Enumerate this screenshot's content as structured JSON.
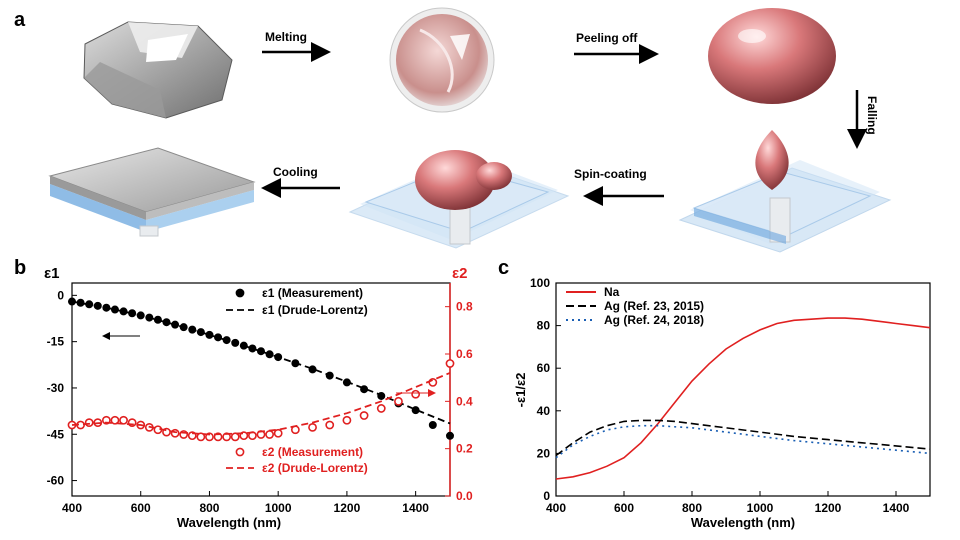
{
  "panel_a": {
    "label": "a",
    "steps": [
      "Melting",
      "Peeling off",
      "Falling",
      "Cooling",
      "Spin-coating"
    ]
  },
  "panel_b": {
    "label": "b",
    "y1_label": "ε1",
    "y2_label": "ε2",
    "xlabel": "Wavelength (nm)"
  },
  "panel_c": {
    "label": "c",
    "ylabel": "-ε1/ε2",
    "xlabel": "Wavelength (nm)"
  },
  "colors": {
    "red": "#e02020",
    "black": "#000000",
    "blue": "#1a5fb4",
    "glass": "#b9d6f0",
    "sodium": "#d9787a"
  },
  "chart_data": [
    {
      "id": "b",
      "type": "scatter",
      "xlabel": "Wavelength (nm)",
      "xlim": [
        400,
        1500
      ],
      "xticks": [
        400,
        600,
        800,
        1000,
        1200,
        1400
      ],
      "y1label": "ε1",
      "y1lim": [
        -65,
        4
      ],
      "y1ticks": [
        0,
        -15,
        -30,
        -45,
        -60
      ],
      "y2label": "ε2",
      "y2lim": [
        0,
        0.9
      ],
      "y2ticks": [
        "0.0",
        "0.2",
        "0.4",
        "0.6",
        "0.8"
      ],
      "series": [
        {
          "name": "ε1 (Measurement)",
          "axis": "left",
          "style": "dots",
          "color": "#000000",
          "x": [
            400,
            425,
            450,
            475,
            500,
            525,
            550,
            575,
            600,
            625,
            650,
            675,
            700,
            725,
            750,
            775,
            800,
            825,
            850,
            875,
            900,
            925,
            950,
            975,
            1000,
            1050,
            1100,
            1150,
            1200,
            1250,
            1300,
            1350,
            1400,
            1450,
            1500
          ],
          "y": [
            -2.0,
            -2.4,
            -2.9,
            -3.4,
            -4.0,
            -4.6,
            -5.2,
            -5.8,
            -6.5,
            -7.2,
            -7.9,
            -8.7,
            -9.5,
            -10.3,
            -11.1,
            -11.9,
            -12.8,
            -13.6,
            -14.5,
            -15.4,
            -16.3,
            -17.2,
            -18.1,
            -19.1,
            -20.0,
            -22.0,
            -24.0,
            -26.0,
            -28.2,
            -30.4,
            -32.6,
            -35.0,
            -37.2,
            -42.0,
            -45.5
          ]
        },
        {
          "name": "ε1 (Drude-Lorentz)",
          "axis": "left",
          "style": "dash",
          "color": "#000000",
          "x": [
            400,
            500,
            600,
            700,
            800,
            900,
            1000,
            1100,
            1200,
            1300,
            1400,
            1500
          ],
          "y": [
            -2.0,
            -4.0,
            -6.5,
            -9.5,
            -12.8,
            -16.3,
            -20.0,
            -23.8,
            -28.0,
            -32.3,
            -37.0,
            -41.5
          ]
        },
        {
          "name": "ε2 (Measurement)",
          "axis": "right",
          "style": "dots",
          "color": "#e02020",
          "x": [
            400,
            425,
            450,
            475,
            500,
            525,
            550,
            575,
            600,
            625,
            650,
            675,
            700,
            725,
            750,
            775,
            800,
            825,
            850,
            875,
            900,
            925,
            950,
            975,
            1000,
            1050,
            1100,
            1150,
            1200,
            1250,
            1300,
            1350,
            1400,
            1450,
            1500
          ],
          "y": [
            0.3,
            0.3,
            0.31,
            0.31,
            0.32,
            0.32,
            0.32,
            0.31,
            0.3,
            0.29,
            0.28,
            0.27,
            0.265,
            0.26,
            0.255,
            0.25,
            0.25,
            0.25,
            0.25,
            0.25,
            0.255,
            0.255,
            0.26,
            0.26,
            0.265,
            0.28,
            0.29,
            0.3,
            0.32,
            0.34,
            0.37,
            0.4,
            0.43,
            0.48,
            0.56
          ]
        },
        {
          "name": "ε2 (Drude-Lorentz)",
          "axis": "right",
          "style": "dash",
          "color": "#e02020",
          "x": [
            400,
            500,
            600,
            700,
            800,
            900,
            1000,
            1100,
            1200,
            1300,
            1400,
            1500
          ],
          "y": [
            0.3,
            0.31,
            0.3,
            0.27,
            0.26,
            0.265,
            0.28,
            0.31,
            0.35,
            0.4,
            0.46,
            0.52
          ]
        }
      ]
    },
    {
      "id": "c",
      "type": "line",
      "xlabel": "Wavelength (nm)",
      "xlim": [
        400,
        1500
      ],
      "xticks": [
        400,
        600,
        800,
        1000,
        1200,
        1400
      ],
      "ylabel": "-ε1/ε2",
      "ylim": [
        0,
        100
      ],
      "yticks": [
        0,
        20,
        40,
        60,
        80,
        100
      ],
      "series": [
        {
          "name": "Na",
          "style": "solid",
          "color": "#e02020",
          "x": [
            400,
            450,
            500,
            550,
            600,
            650,
            700,
            750,
            800,
            850,
            900,
            950,
            1000,
            1050,
            1100,
            1150,
            1200,
            1250,
            1300,
            1350,
            1400,
            1450,
            1500
          ],
          "y": [
            8,
            9,
            11,
            14,
            18,
            25,
            34,
            44,
            54,
            62,
            69,
            74,
            78,
            81,
            82.5,
            83,
            83.5,
            83.5,
            83,
            82,
            81,
            80,
            79
          ]
        },
        {
          "name": "Ag (Ref. 23, 2015)",
          "style": "dash",
          "color": "#000000",
          "x": [
            400,
            450,
            500,
            550,
            600,
            650,
            700,
            750,
            800,
            900,
            1000,
            1100,
            1200,
            1300,
            1400,
            1500
          ],
          "y": [
            19,
            25,
            30,
            33,
            35,
            35.5,
            35.5,
            35,
            34,
            32,
            30,
            28,
            26.5,
            25,
            23.5,
            22
          ]
        },
        {
          "name": "Ag (Ref. 24, 2018)",
          "style": "dot",
          "color": "#1a5fb4",
          "x": [
            400,
            450,
            500,
            550,
            600,
            650,
            700,
            750,
            800,
            900,
            1000,
            1100,
            1200,
            1300,
            1400,
            1500
          ],
          "y": [
            18,
            24,
            28,
            31,
            32.5,
            33,
            33,
            32.5,
            32,
            30,
            28,
            26,
            24.5,
            23,
            21.5,
            20
          ]
        }
      ]
    }
  ]
}
